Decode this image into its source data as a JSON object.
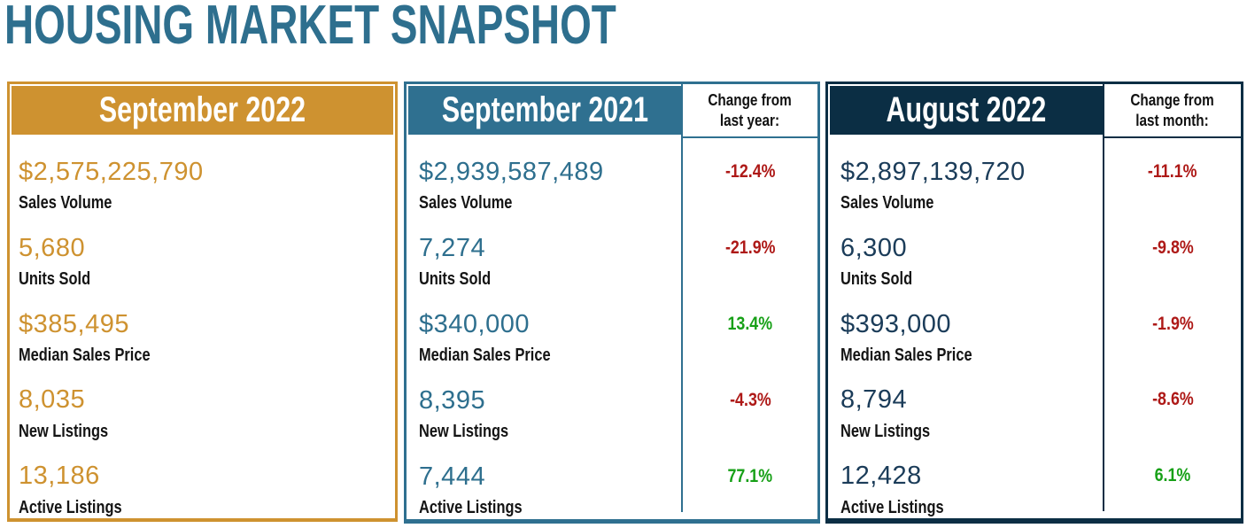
{
  "title": "HOUSING MARKET SNAPSHOT",
  "colors": {
    "title_teal": "#2E6F8E",
    "gold": "#CE9230",
    "teal": "#2F7090",
    "navy": "#0B2E44",
    "navy_value": "#1B3C59",
    "negative_red": "#AE1917",
    "positive_green": "#17A017",
    "label_black": "#141414"
  },
  "metrics": [
    "Sales Volume",
    "Units Sold",
    "Median Sales Price",
    "New Listings",
    "Active Listings"
  ],
  "panels": [
    {
      "title": "September 2022",
      "theme": "gold",
      "values": [
        "$2,575,225,790",
        "5,680",
        "$385,495",
        "8,035",
        "13,186"
      ]
    },
    {
      "title": "September 2021",
      "theme": "teal",
      "change_header": "Change from\nlast year:",
      "values": [
        "$2,939,587,489",
        "7,274",
        "$340,000",
        "8,395",
        "7,444"
      ],
      "changes": [
        "-12.4%",
        "-21.9%",
        "13.4%",
        "-4.3%",
        "77.1%"
      ],
      "change_signs": [
        "neg",
        "neg",
        "pos",
        "neg",
        "pos"
      ]
    },
    {
      "title": "August 2022",
      "theme": "navy",
      "change_header": "Change from\nlast month:",
      "values": [
        "$2,897,139,720",
        "6,300",
        "$393,000",
        "8,794",
        "12,428"
      ],
      "changes": [
        "-11.1%",
        "-9.8%",
        "-1.9%",
        "-8.6%",
        "6.1%"
      ],
      "change_signs": [
        "neg",
        "neg",
        "neg",
        "neg",
        "pos"
      ]
    }
  ],
  "chart_data": {
    "type": "table",
    "title": "HOUSING MARKET SNAPSHOT",
    "columns": [
      "Metric",
      "September 2022",
      "September 2021",
      "Change from last year",
      "August 2022",
      "Change from last month"
    ],
    "rows": [
      [
        "Sales Volume",
        "$2,575,225,790",
        "$2,939,587,489",
        "-12.4%",
        "$2,897,139,720",
        "-11.1%"
      ],
      [
        "Units Sold",
        "5,680",
        "7,274",
        "-21.9%",
        "6,300",
        "-9.8%"
      ],
      [
        "Median Sales Price",
        "$385,495",
        "$340,000",
        "13.4%",
        "$393,000",
        "-1.9%"
      ],
      [
        "New Listings",
        "8,035",
        "8,395",
        "-4.3%",
        "8,794",
        "-8.6%"
      ],
      [
        "Active Listings",
        "13,186",
        "7,444",
        "77.1%",
        "12,428",
        "6.1%"
      ]
    ]
  }
}
